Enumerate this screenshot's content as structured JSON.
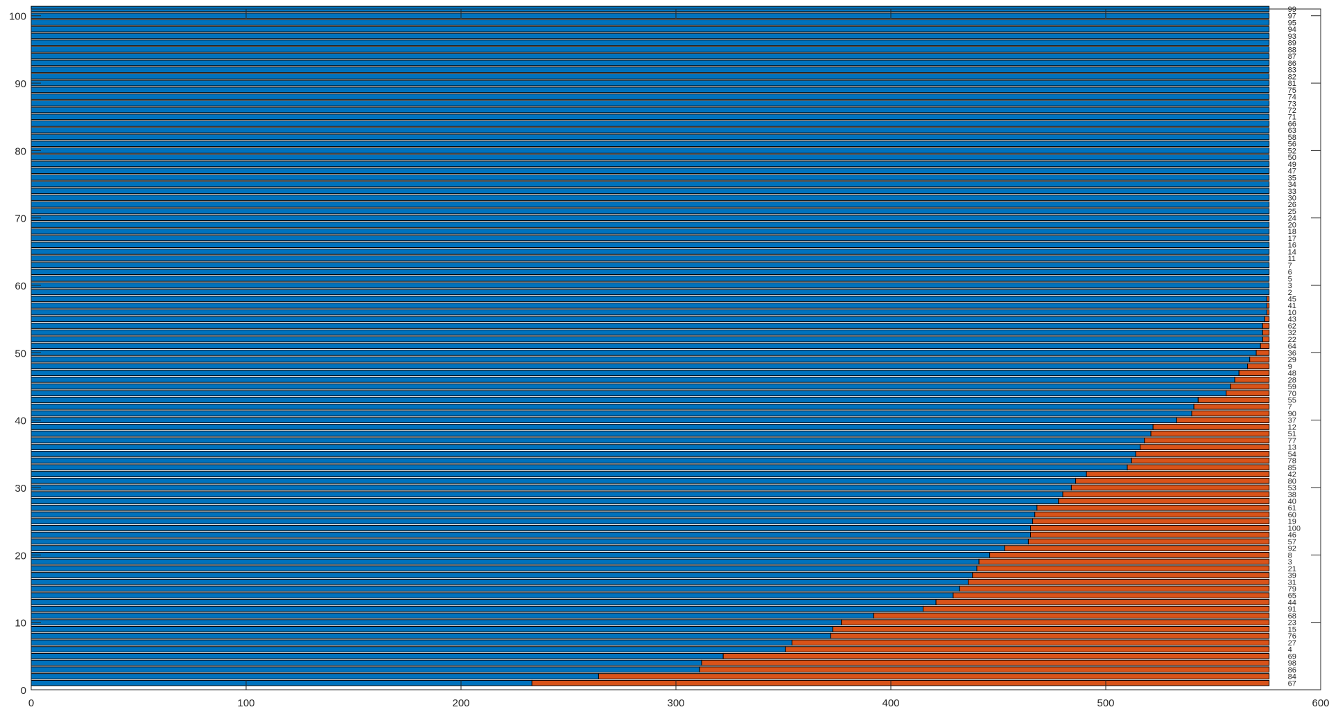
{
  "chart_data": {
    "type": "bar",
    "orientation": "horizontal",
    "stacked": true,
    "xlim": [
      0,
      600
    ],
    "ylim": [
      0,
      101
    ],
    "xticks": [
      0,
      100,
      200,
      300,
      400,
      500,
      600
    ],
    "yticks": [
      0,
      10,
      20,
      30,
      40,
      50,
      60,
      70,
      80,
      90,
      100
    ],
    "grid": false,
    "legend": "none",
    "total": 576,
    "colors": {
      "series_1": "#0072BD",
      "series_2": "#D95319",
      "edge": "#000000",
      "axis": "#262626"
    },
    "rows": [
      {
        "y": 1,
        "label": "67",
        "value": 233
      },
      {
        "y": 2,
        "label": "84",
        "value": 264
      },
      {
        "y": 3,
        "label": "86",
        "value": 311
      },
      {
        "y": 4,
        "label": "98",
        "value": 312
      },
      {
        "y": 5,
        "label": "69",
        "value": 322
      },
      {
        "y": 6,
        "label": "4",
        "value": 351
      },
      {
        "y": 7,
        "label": "27",
        "value": 354
      },
      {
        "y": 8,
        "label": "76",
        "value": 372
      },
      {
        "y": 9,
        "label": "15",
        "value": 373
      },
      {
        "y": 10,
        "label": "23",
        "value": 377
      },
      {
        "y": 11,
        "label": "68",
        "value": 392
      },
      {
        "y": 12,
        "label": "91",
        "value": 415
      },
      {
        "y": 13,
        "label": "44",
        "value": 421
      },
      {
        "y": 14,
        "label": "65",
        "value": 429
      },
      {
        "y": 15,
        "label": "79",
        "value": 432
      },
      {
        "y": 16,
        "label": "31",
        "value": 436
      },
      {
        "y": 17,
        "label": "39",
        "value": 438
      },
      {
        "y": 18,
        "label": "21",
        "value": 440
      },
      {
        "y": 19,
        "label": "3",
        "value": 441
      },
      {
        "y": 20,
        "label": "8",
        "value": 446
      },
      {
        "y": 21,
        "label": "92",
        "value": 453
      },
      {
        "y": 22,
        "label": "57",
        "value": 464
      },
      {
        "y": 23,
        "label": "46",
        "value": 465
      },
      {
        "y": 24,
        "label": "100",
        "value": 465
      },
      {
        "y": 25,
        "label": "19",
        "value": 466
      },
      {
        "y": 26,
        "label": "60",
        "value": 467
      },
      {
        "y": 27,
        "label": "61",
        "value": 468
      },
      {
        "y": 28,
        "label": "40",
        "value": 478
      },
      {
        "y": 29,
        "label": "38",
        "value": 480
      },
      {
        "y": 30,
        "label": "53",
        "value": 484
      },
      {
        "y": 31,
        "label": "80",
        "value": 486
      },
      {
        "y": 32,
        "label": "42",
        "value": 491
      },
      {
        "y": 33,
        "label": "85",
        "value": 510
      },
      {
        "y": 34,
        "label": "78",
        "value": 512
      },
      {
        "y": 35,
        "label": "54",
        "value": 514
      },
      {
        "y": 36,
        "label": "13",
        "value": 516
      },
      {
        "y": 37,
        "label": "77",
        "value": 518
      },
      {
        "y": 38,
        "label": "51",
        "value": 521
      },
      {
        "y": 39,
        "label": "12",
        "value": 522
      },
      {
        "y": 40,
        "label": "37",
        "value": 533
      },
      {
        "y": 41,
        "label": "90",
        "value": 540
      },
      {
        "y": 42,
        "label": "7",
        "value": 541
      },
      {
        "y": 43,
        "label": "55",
        "value": 543
      },
      {
        "y": 44,
        "label": "70",
        "value": 556
      },
      {
        "y": 45,
        "label": "59",
        "value": 558
      },
      {
        "y": 46,
        "label": "28",
        "value": 560
      },
      {
        "y": 47,
        "label": "48",
        "value": 562
      },
      {
        "y": 48,
        "label": "9",
        "value": 566
      },
      {
        "y": 49,
        "label": "29",
        "value": 567
      },
      {
        "y": 50,
        "label": "36",
        "value": 570
      },
      {
        "y": 51,
        "label": "64",
        "value": 572
      },
      {
        "y": 52,
        "label": "22",
        "value": 573
      },
      {
        "y": 53,
        "label": "32",
        "value": 573
      },
      {
        "y": 54,
        "label": "62",
        "value": 573
      },
      {
        "y": 55,
        "label": "43",
        "value": 574
      },
      {
        "y": 56,
        "label": "10",
        "value": 575
      },
      {
        "y": 57,
        "label": "41",
        "value": 575
      },
      {
        "y": 58,
        "label": "45",
        "value": 575
      },
      {
        "y": 59,
        "label": "2",
        "value": 576
      },
      {
        "y": 60,
        "label": "3",
        "value": 576
      },
      {
        "y": 61,
        "label": "5",
        "value": 576
      },
      {
        "y": 62,
        "label": "6",
        "value": 576
      },
      {
        "y": 63,
        "label": "7",
        "value": 576
      },
      {
        "y": 64,
        "label": "11",
        "value": 576
      },
      {
        "y": 65,
        "label": "14",
        "value": 576
      },
      {
        "y": 66,
        "label": "16",
        "value": 576
      },
      {
        "y": 67,
        "label": "17",
        "value": 576
      },
      {
        "y": 68,
        "label": "18",
        "value": 576
      },
      {
        "y": 69,
        "label": "20",
        "value": 576
      },
      {
        "y": 70,
        "label": "24",
        "value": 576
      },
      {
        "y": 71,
        "label": "25",
        "value": 576
      },
      {
        "y": 72,
        "label": "26",
        "value": 576
      },
      {
        "y": 73,
        "label": "30",
        "value": 576
      },
      {
        "y": 74,
        "label": "33",
        "value": 576
      },
      {
        "y": 75,
        "label": "34",
        "value": 576
      },
      {
        "y": 76,
        "label": "35",
        "value": 576
      },
      {
        "y": 77,
        "label": "47",
        "value": 576
      },
      {
        "y": 78,
        "label": "49",
        "value": 576
      },
      {
        "y": 79,
        "label": "50",
        "value": 576
      },
      {
        "y": 80,
        "label": "52",
        "value": 576
      },
      {
        "y": 81,
        "label": "56",
        "value": 576
      },
      {
        "y": 82,
        "label": "58",
        "value": 576
      },
      {
        "y": 83,
        "label": "63",
        "value": 576
      },
      {
        "y": 84,
        "label": "66",
        "value": 576
      },
      {
        "y": 85,
        "label": "71",
        "value": 576
      },
      {
        "y": 86,
        "label": "72",
        "value": 576
      },
      {
        "y": 87,
        "label": "73",
        "value": 576
      },
      {
        "y": 88,
        "label": "74",
        "value": 576
      },
      {
        "y": 89,
        "label": "75",
        "value": 576
      },
      {
        "y": 90,
        "label": "81",
        "value": 576
      },
      {
        "y": 91,
        "label": "82",
        "value": 576
      },
      {
        "y": 92,
        "label": "83",
        "value": 576
      },
      {
        "y": 93,
        "label": "86",
        "value": 576
      },
      {
        "y": 94,
        "label": "87",
        "value": 576
      },
      {
        "y": 95,
        "label": "88",
        "value": 576
      },
      {
        "y": 96,
        "label": "89",
        "value": 576
      },
      {
        "y": 97,
        "label": "93",
        "value": 576
      },
      {
        "y": 98,
        "label": "94",
        "value": 576
      },
      {
        "y": 99,
        "label": "95",
        "value": 576
      },
      {
        "y": 100,
        "label": "97",
        "value": 576
      },
      {
        "y": 101,
        "label": "99",
        "value": 576
      }
    ]
  }
}
